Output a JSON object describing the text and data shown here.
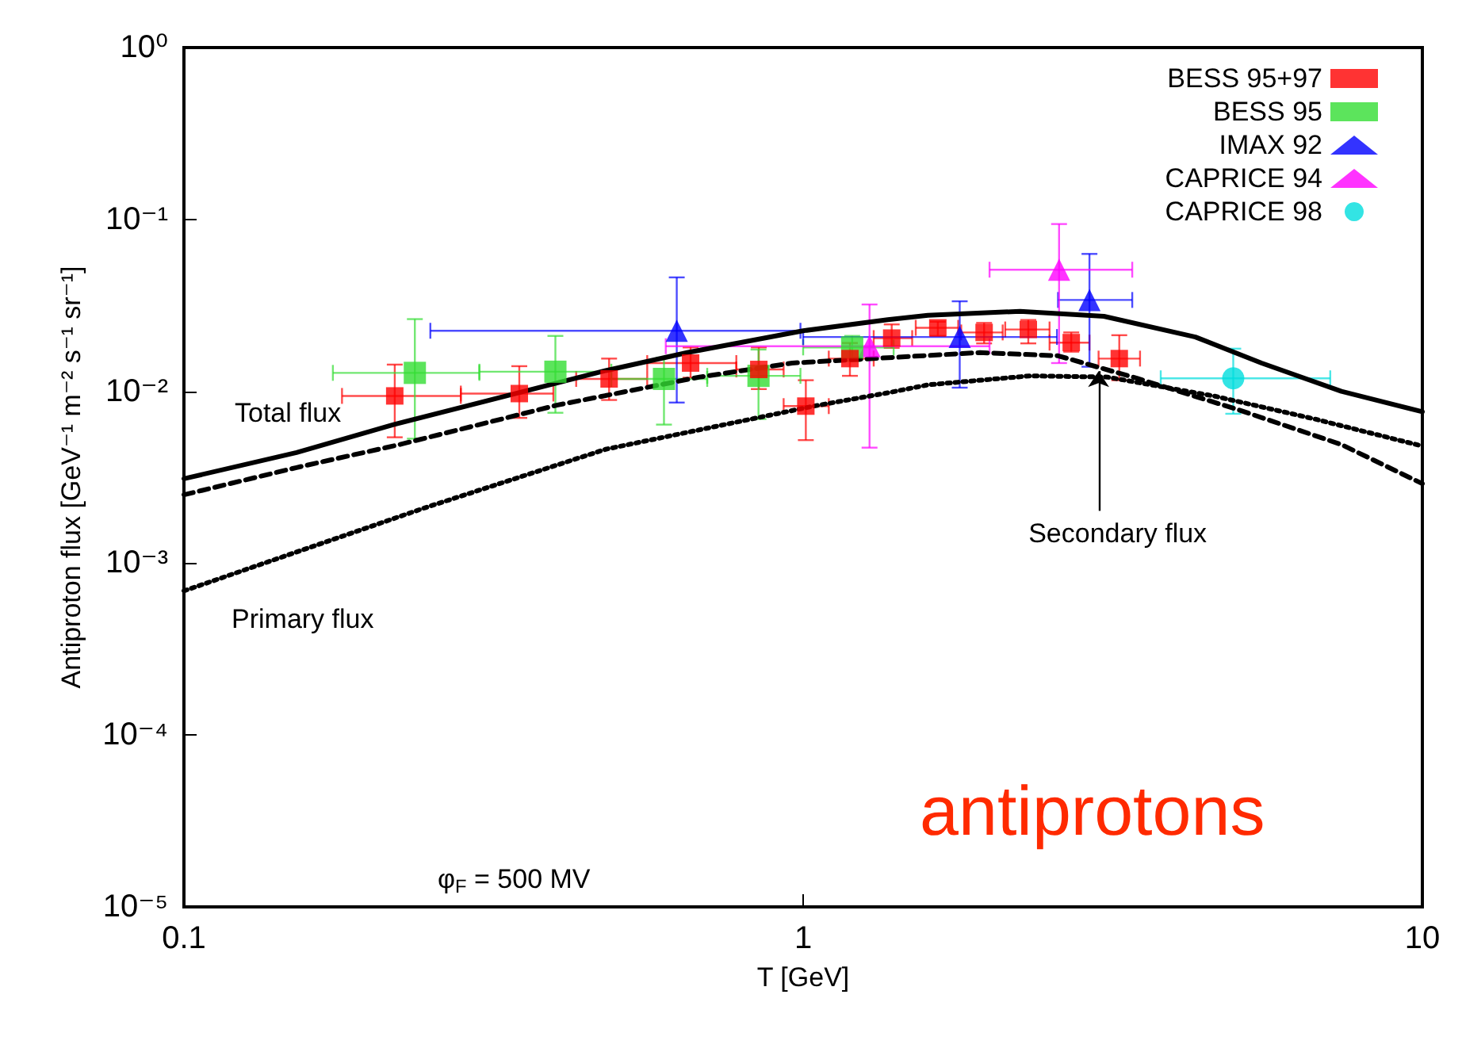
{
  "chart_data": {
    "type": "scatter",
    "xlabel": "T [GeV]",
    "ylabel": "Antiproton flux [GeV⁻¹ m⁻² s⁻¹ sr⁻¹]",
    "log": "xy",
    "xlim": [
      0.1,
      10
    ],
    "xticks": [
      0.1,
      1,
      10
    ],
    "ylim": [
      1e-05,
      1
    ],
    "yticks": [
      {
        "value": 1e-05,
        "label": "10⁻⁵"
      },
      {
        "value": 0.0001,
        "label": "10⁻⁴"
      },
      {
        "value": 0.001,
        "label": "10⁻³"
      },
      {
        "value": 0.01,
        "label": "10⁻²"
      },
      {
        "value": 0.1,
        "label": "10⁻¹"
      },
      {
        "value": 1,
        "label": "10⁰"
      }
    ],
    "grid": false,
    "legend": "top right",
    "series": [
      {
        "name": "BESS 95+97",
        "color": "#ff0000",
        "marker": "square",
        "x": [
          0.219,
          0.348,
          0.486,
          0.658,
          0.848,
          1.01,
          1.19,
          1.39,
          1.65,
          1.96,
          2.31,
          2.71,
          3.24
        ],
        "values": [
          0.0094,
          0.0097,
          0.0118,
          0.0146,
          0.0134,
          0.0082,
          0.0155,
          0.0204,
          0.0234,
          0.022,
          0.0229,
          0.0192,
          0.0155
        ],
        "errors": [
          [
            0.0054,
            0.0143
          ],
          [
            0.007,
            0.014
          ],
          [
            0.0089,
            0.0155
          ],
          [
            0.012,
            0.018
          ],
          [
            0.0103,
            0.018
          ],
          [
            0.0052,
            0.0116
          ],
          [
            0.0123,
            0.0191
          ],
          [
            0.0179,
            0.0245
          ],
          [
            0.021,
            0.0254
          ],
          [
            0.019,
            0.025
          ],
          [
            0.019,
            0.026
          ],
          [
            0.017,
            0.022
          ],
          [
            0.0116,
            0.0212
          ]
        ],
        "xerrors": [
          [
            0.18,
            0.28
          ],
          [
            0.28,
            0.395
          ],
          [
            0.43,
            0.56
          ],
          [
            0.56,
            0.78
          ],
          [
            0.78,
            0.93
          ],
          [
            0.93,
            1.1
          ],
          [
            1.1,
            1.3
          ],
          [
            1.3,
            1.5
          ],
          [
            1.52,
            1.78
          ],
          [
            1.8,
            2.1
          ],
          [
            2.12,
            2.5
          ],
          [
            2.5,
            2.9
          ],
          [
            3.0,
            3.5
          ]
        ]
      },
      {
        "name": "BESS 95",
        "color": "#33dd33",
        "marker": "square",
        "x": [
          0.236,
          0.398,
          0.596,
          0.847,
          1.2
        ],
        "values": [
          0.0128,
          0.013,
          0.0118,
          0.0123,
          0.018
        ],
        "errors": [
          [
            0.0053,
            0.0263
          ],
          [
            0.0075,
            0.021
          ],
          [
            0.0064,
            0.0157
          ],
          [
            0.0069,
            0.0175
          ],
          [
            0.015,
            0.021
          ]
        ],
        "xerrors": [
          [
            0.174,
            0.3
          ],
          [
            0.3,
            0.49
          ],
          [
            0.49,
            0.7
          ],
          [
            0.7,
            0.99
          ],
          [
            1.0,
            1.4
          ]
        ]
      },
      {
        "name": "IMAX 92",
        "color": "#0000ff",
        "marker": "triangle",
        "x": [
          0.625,
          1.79,
          2.9
        ],
        "values": [
          0.0225,
          0.0207,
          0.034
        ],
        "errors": [
          [
            0.0086,
            0.046
          ],
          [
            0.0105,
            0.0334
          ],
          [
            0.0139,
            0.063
          ]
        ],
        "xerrors": [
          [
            0.25,
            0.99
          ],
          [
            1.0,
            2.57
          ],
          [
            2.58,
            3.4
          ]
        ]
      },
      {
        "name": "CAPRICE 94",
        "color": "#ff00ff",
        "marker": "triangle",
        "x": [
          1.28,
          2.59
        ],
        "values": [
          0.0183,
          0.051
        ],
        "errors": [
          [
            0.0047,
            0.032
          ],
          [
            0.0146,
            0.094
          ]
        ],
        "xerrors": [
          [
            0.6,
            2.0
          ],
          [
            2.0,
            3.4
          ]
        ]
      },
      {
        "name": "CAPRICE 98",
        "color": "#00dddd",
        "marker": "circle",
        "x": [
          4.95
        ],
        "values": [
          0.0119
        ],
        "errors": [
          [
            0.0074,
            0.0177
          ]
        ],
        "xerrors": [
          [
            3.78,
            7.1
          ]
        ]
      },
      {
        "type": "line",
        "color": "#000000",
        "line_style": "solid",
        "x": [
          0.1,
          0.152,
          0.218,
          0.48,
          0.65,
          1.0,
          1.37,
          1.59,
          2.24,
          3.06,
          4.3,
          5.5,
          7.4,
          10
        ],
        "values": [
          0.0031,
          0.0044,
          0.0064,
          0.0132,
          0.0168,
          0.0225,
          0.0261,
          0.0277,
          0.0292,
          0.0273,
          0.0207,
          0.0146,
          0.01,
          0.0076
        ]
      },
      {
        "type": "line",
        "color": "#000000",
        "line_style": "dashed",
        "x": [
          0.1,
          0.152,
          0.223,
          0.4,
          0.68,
          0.96,
          1.93,
          2.58,
          3.46,
          5.05,
          7.4,
          10
        ],
        "values": [
          0.0025,
          0.0036,
          0.0049,
          0.0083,
          0.0121,
          0.0146,
          0.0168,
          0.0161,
          0.0119,
          0.0078,
          0.0049,
          0.0029
        ]
      },
      {
        "type": "line",
        "color": "#000000",
        "line_style": "dotted",
        "x": [
          0.1,
          0.245,
          0.48,
          1.04,
          1.37,
          1.59,
          2.33,
          3.1,
          4.6,
          6.7,
          10
        ],
        "values": [
          0.00069,
          0.0021,
          0.0046,
          0.0082,
          0.0098,
          0.0109,
          0.0123,
          0.0121,
          0.0094,
          0.0069,
          0.0048
        ]
      }
    ],
    "annotations": [
      "Total flux",
      "Primary flux",
      {
        "text": "Secondary flux",
        "x": 3.0,
        "y": 0.0131
      },
      "φ$_{F}$ = 500 MV",
      "antiprotons"
    ]
  }
}
